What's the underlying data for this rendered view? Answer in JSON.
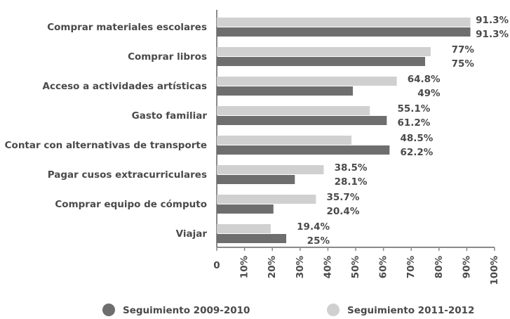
{
  "chart_data": {
    "type": "bar",
    "orientation": "horizontal",
    "categories": [
      "Comprar materiales escolares",
      "Comprar libros",
      "Acceso a actividades artísticas",
      "Gasto familiar",
      "Contar con alternativas de transporte",
      "Pagar cusos extracurriculares",
      "Comprar equipo de cómputo",
      "Viajar"
    ],
    "series": [
      {
        "name": "Seguimiento 2009-2010",
        "color": "#6e6e6e",
        "values": [
          91.3,
          75,
          49,
          61.2,
          62.2,
          28.1,
          20.4,
          25
        ],
        "value_labels": [
          "91.3%",
          "75%",
          "49%",
          "61.2%",
          "62.2%",
          "28.1%",
          "20.4%",
          "25%"
        ]
      },
      {
        "name": "Seguimiento 2011-2012",
        "color": "#d0d0d0",
        "values": [
          91.3,
          77,
          64.8,
          55.1,
          48.5,
          38.5,
          35.7,
          19.4
        ],
        "value_labels": [
          "91.3%",
          "77%",
          "64.8%",
          "55.1%",
          "48.5%",
          "38.5%",
          "35.7%",
          "19.4%"
        ]
      }
    ],
    "xlim": [
      0,
      100
    ],
    "xticks": [
      0,
      {
        "value": 10,
        "label": "10%"
      },
      {
        "value": 20,
        "label": "20%"
      },
      {
        "value": 30,
        "label": "30%"
      },
      {
        "value": 40,
        "label": "40%"
      },
      {
        "value": 50,
        "label": "50%"
      },
      {
        "value": 60,
        "label": "60%"
      },
      {
        "value": 70,
        "label": "70%"
      },
      {
        "value": 80,
        "label": "80%"
      },
      {
        "value": 90,
        "label": "90%"
      },
      {
        "value": 100,
        "label": "100%"
      }
    ],
    "legend": "bottom"
  }
}
